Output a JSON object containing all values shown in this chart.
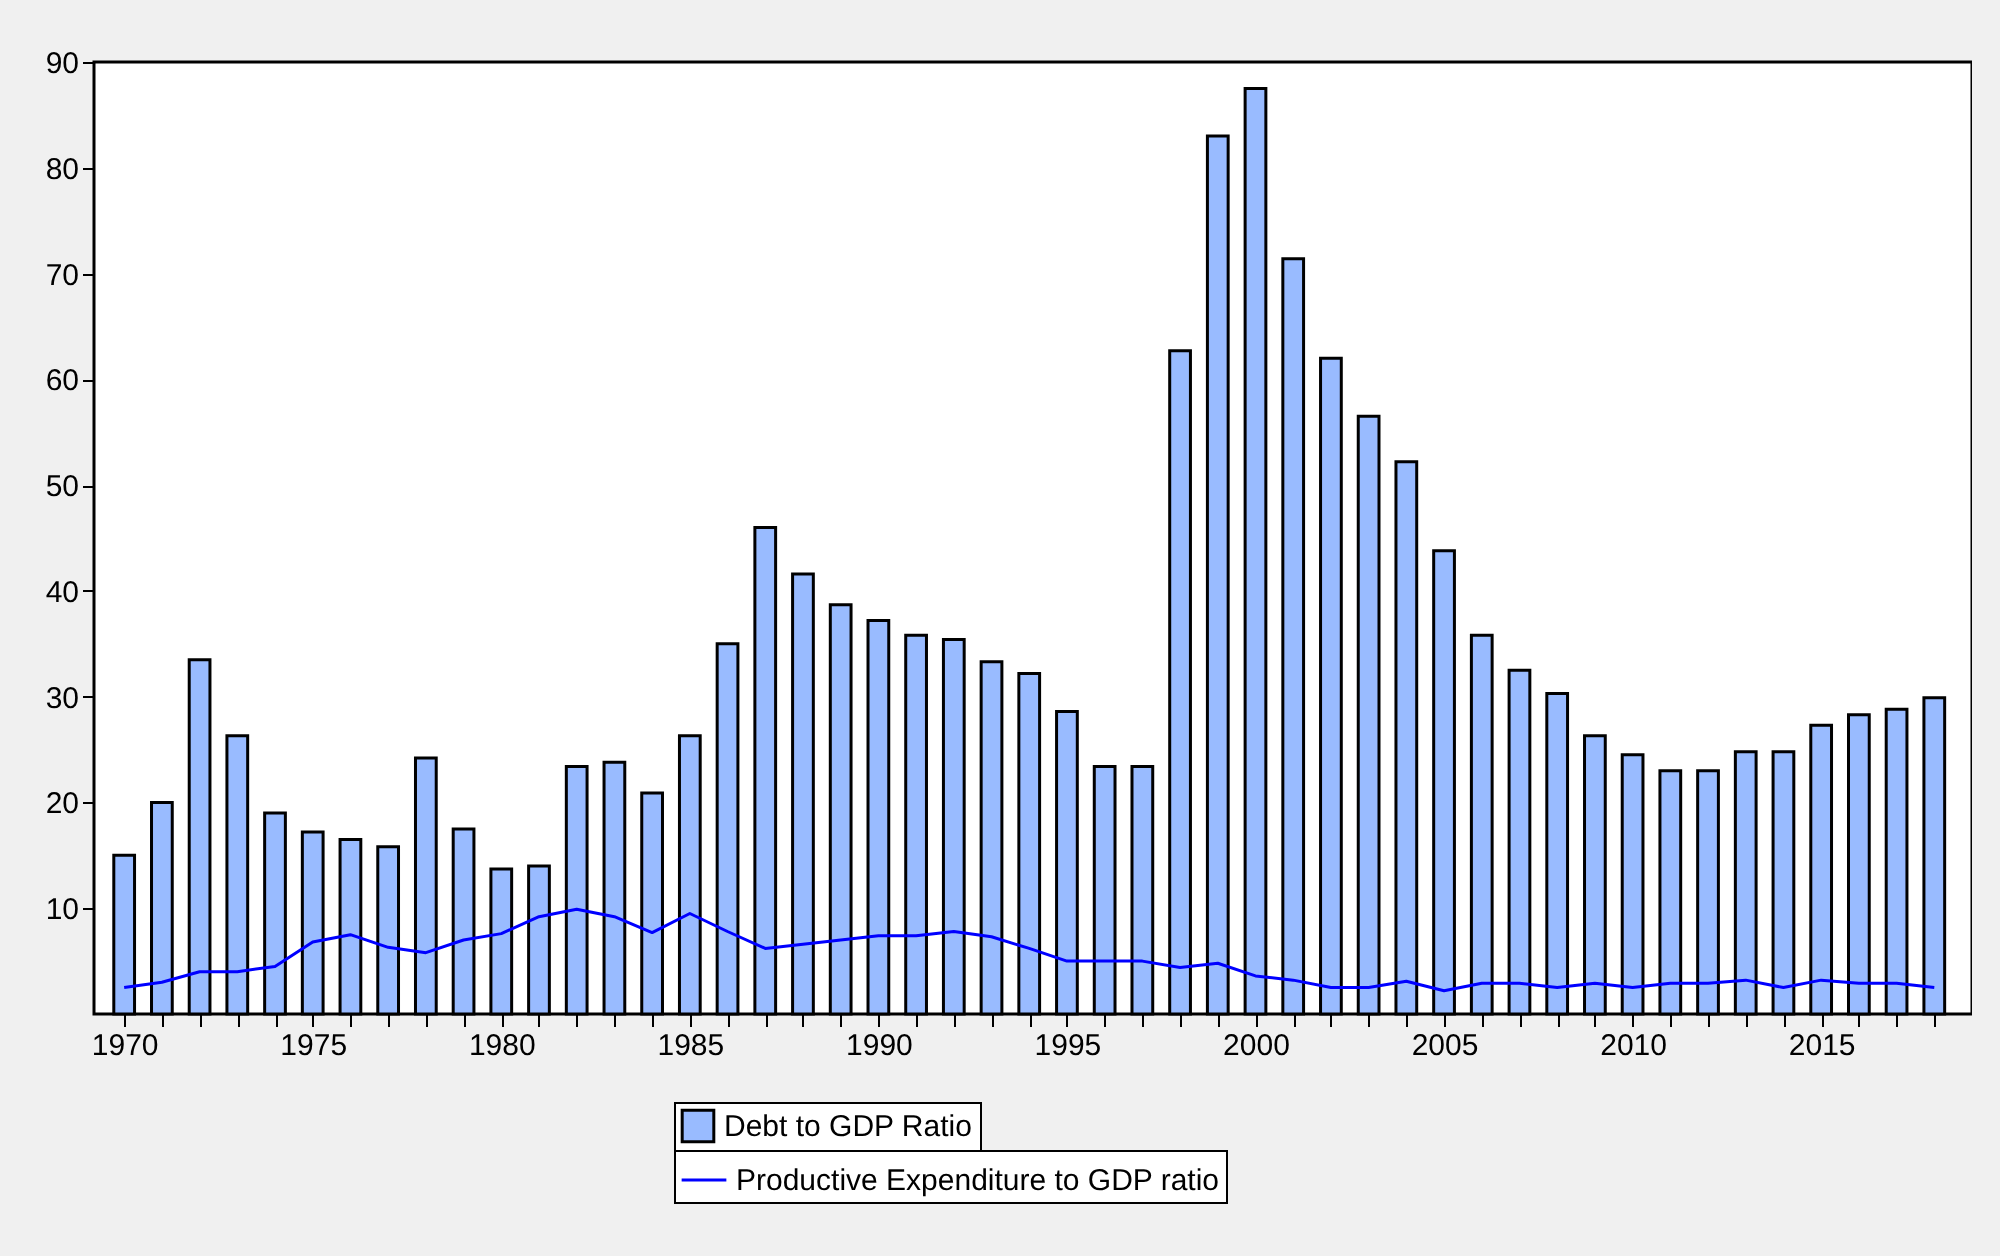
{
  "chart_data": {
    "type": "bar",
    "x": [
      1970,
      1971,
      1972,
      1973,
      1974,
      1975,
      1976,
      1977,
      1978,
      1979,
      1980,
      1981,
      1982,
      1983,
      1984,
      1985,
      1986,
      1987,
      1988,
      1989,
      1990,
      1991,
      1992,
      1993,
      1994,
      1995,
      1996,
      1997,
      1998,
      1999,
      2000,
      2001,
      2002,
      2003,
      2004,
      2005,
      2006,
      2007,
      2008,
      2009,
      2010,
      2011,
      2012,
      2013,
      2014,
      2015,
      2016,
      2017,
      2018
    ],
    "series": [
      {
        "name": "Debt to GDP Ratio",
        "color": "#99bbff",
        "values": [
          15,
          20,
          33.5,
          26.3,
          19,
          17.2,
          16.5,
          15.8,
          24.2,
          17.5,
          13.7,
          14,
          23.4,
          23.8,
          20.9,
          26.3,
          35,
          46,
          41.6,
          38.7,
          37.2,
          35.8,
          35.4,
          33.3,
          32.2,
          28.6,
          23.4,
          23.4,
          62.7,
          83,
          87.5,
          71.4,
          62,
          56.5,
          52.2,
          43.8,
          35.8,
          32.5,
          30.3,
          26.3,
          24.5,
          23,
          23,
          24.8,
          24.8,
          27.3,
          28.3,
          28.8,
          29.9
        ]
      },
      {
        "name": "Productive Expenditure to GDP ratio",
        "type": "line",
        "color": "#0000ff",
        "values": [
          2.5,
          3,
          4,
          4,
          4.5,
          6.8,
          7.5,
          6.3,
          5.8,
          7,
          7.6,
          9.2,
          9.9,
          9.2,
          7.7,
          9.5,
          7.8,
          6.2,
          6.6,
          7,
          7.4,
          7.4,
          7.8,
          7.3,
          6.2,
          5,
          5,
          5,
          4.4,
          4.8,
          3.6,
          3.2,
          2.5,
          2.5,
          3.1,
          2.2,
          2.9,
          2.9,
          2.5,
          2.9,
          2.5,
          2.9,
          2.9,
          3.2,
          2.5,
          3.2,
          2.9,
          2.9,
          2.5
        ]
      }
    ],
    "xlim": [
      1969.2,
      2019
    ],
    "xticks": [
      1970,
      {
        "value": 1971,
        "label": null
      },
      {
        "value": 1972,
        "label": null
      },
      {
        "value": 1973,
        "label": null
      },
      {
        "value": 1974,
        "label": null
      },
      1975,
      {
        "value": 1976,
        "label": null
      },
      {
        "value": 1977,
        "label": null
      },
      {
        "value": 1978,
        "label": null
      },
      {
        "value": 1979,
        "label": null
      },
      1980,
      {
        "value": 1981,
        "label": null
      },
      {
        "value": 1982,
        "label": null
      },
      {
        "value": 1983,
        "label": null
      },
      {
        "value": 1984,
        "label": null
      },
      1985,
      {
        "value": 1986,
        "label": null
      },
      {
        "value": 1987,
        "label": null
      },
      {
        "value": 1988,
        "label": null
      },
      {
        "value": 1989,
        "label": null
      },
      1990,
      {
        "value": 1991,
        "label": null
      },
      {
        "value": 1992,
        "label": null
      },
      {
        "value": 1993,
        "label": null
      },
      {
        "value": 1994,
        "label": null
      },
      1995,
      {
        "value": 1996,
        "label": null
      },
      {
        "value": 1997,
        "label": null
      },
      {
        "value": 1998,
        "label": null
      },
      {
        "value": 1999,
        "label": null
      },
      2000,
      {
        "value": 2001,
        "label": null
      },
      {
        "value": 2002,
        "label": null
      },
      {
        "value": 2003,
        "label": null
      },
      {
        "value": 2004,
        "label": null
      },
      2005,
      {
        "value": 2006,
        "label": null
      },
      {
        "value": 2007,
        "label": null
      },
      {
        "value": 2008,
        "label": null
      },
      {
        "value": 2009,
        "label": null
      },
      2010,
      {
        "value": 2011,
        "label": null
      },
      {
        "value": 2012,
        "label": null
      },
      {
        "value": 2013,
        "label": null
      },
      {
        "value": 2014,
        "label": null
      },
      2015,
      {
        "value": 2016,
        "label": null
      },
      {
        "value": 2017,
        "label": null
      },
      {
        "value": 2018,
        "label": null
      }
    ],
    "ylim": [
      0,
      90
    ],
    "yticks": [
      10,
      20,
      30,
      40,
      50,
      60,
      70,
      80,
      90
    ],
    "grid": false,
    "legend": "bottom",
    "line_style": "solid",
    "marker": "none"
  }
}
